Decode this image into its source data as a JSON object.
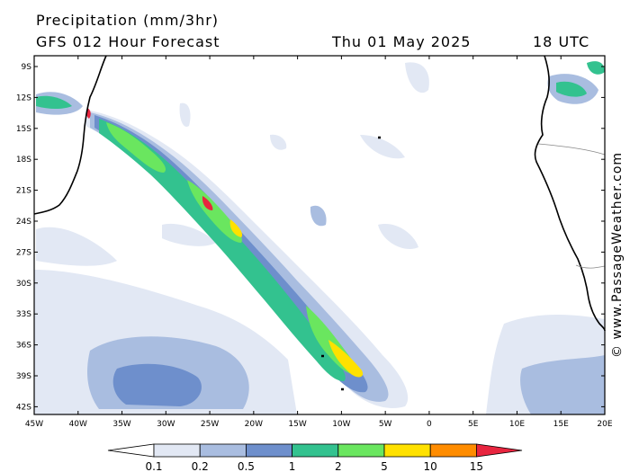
{
  "header": {
    "title": "Precipitation (mm/3hr)",
    "forecast": "GFS 012 Hour Forecast",
    "date": "Thu 01 May 2025",
    "time": "18 UTC"
  },
  "map": {
    "lat_ticks": [
      "9S",
      "12S",
      "15S",
      "18S",
      "21S",
      "24S",
      "27S",
      "30S",
      "33S",
      "36S",
      "39S",
      "42S"
    ],
    "lon_ticks": [
      "45W",
      "40W",
      "35W",
      "30W",
      "25W",
      "20W",
      "15W",
      "10W",
      "5W",
      "0",
      "5E",
      "10E",
      "15E",
      "20E"
    ],
    "land_color": "#ffffff",
    "coast_color": "#000000"
  },
  "copyright": "© www.PassageWeather.com",
  "legend": {
    "labels": [
      "0.1",
      "0.2",
      "0.5",
      "1",
      "2",
      "5",
      "10",
      "15"
    ],
    "colors": [
      "#ffffff",
      "#e2e8f4",
      "#a9bde0",
      "#6e8fcc",
      "#33c28f",
      "#6ae65f",
      "#ffe100",
      "#ff8c00",
      "#e8253f"
    ]
  }
}
